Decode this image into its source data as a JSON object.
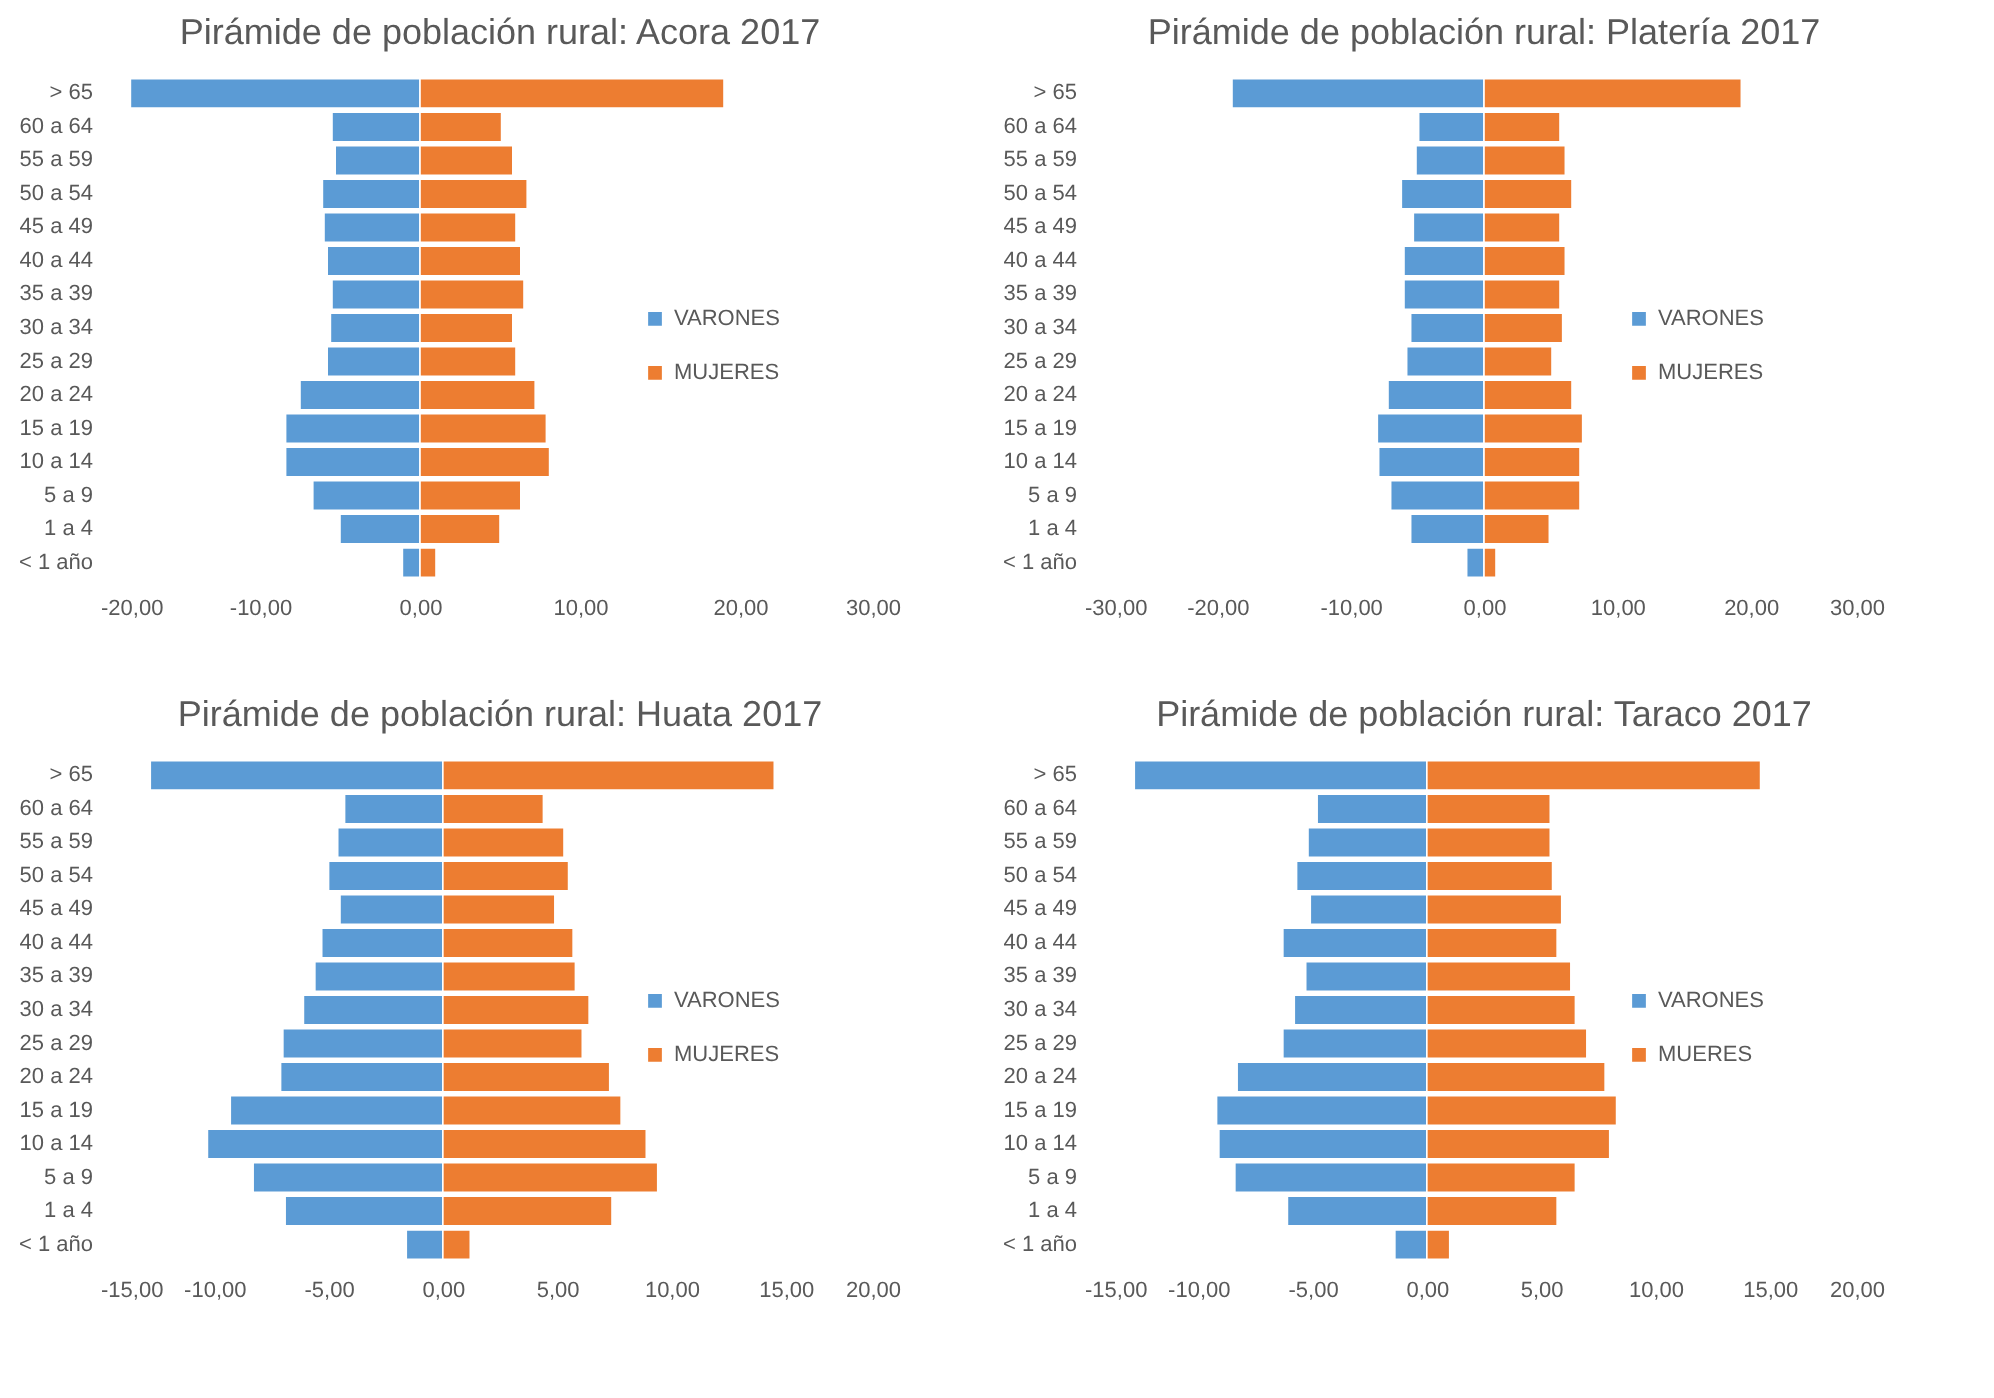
{
  "chart_data": [
    {
      "type": "bar",
      "orientation": "horizontal",
      "stacked": true,
      "title": "Pirámide de población rural: Acora 2017",
      "categories": [
        "> 65",
        "60 a 64",
        "55 a 59",
        "50 a 54",
        "45 a 49",
        "40 a 44",
        "35 a 39",
        "30 a 34",
        "25 a 29",
        "20 a 24",
        "15 a 19",
        "10 a 14",
        "5 a 9",
        "1 a 4",
        "< 1 año"
      ],
      "series": [
        {
          "name": "VARONES",
          "color": "#5b9bd5",
          "values": [
            -18.1,
            -5.5,
            -5.3,
            -6.1,
            -6.0,
            -5.8,
            -5.5,
            -5.6,
            -5.8,
            -7.5,
            -8.4,
            -8.4,
            -6.7,
            -5.0,
            -1.1
          ]
        },
        {
          "name": "MUJERES",
          "color": "#ed7d31",
          "values": [
            19.0,
            5.1,
            5.8,
            6.7,
            6.0,
            6.3,
            6.5,
            5.8,
            6.0,
            7.2,
            7.9,
            8.1,
            6.3,
            5.0,
            1.0
          ]
        }
      ],
      "xlim": [
        -20,
        30
      ],
      "xticks": [
        {
          "value": -20,
          "label": "-20,00"
        },
        {
          "value": -10,
          "label": "-10,00"
        },
        {
          "value": 0,
          "label": "0,00"
        },
        {
          "value": 10,
          "label": "10,00"
        },
        {
          "value": 20,
          "label": "20,00"
        },
        {
          "value": 30,
          "label": "30,00"
        }
      ],
      "legend": "right"
    },
    {
      "type": "bar",
      "orientation": "horizontal",
      "stacked": true,
      "title": "Pirámide de población rural: Platería 2017",
      "categories": [
        "> 65",
        "60 a 64",
        "55 a 59",
        "50 a 54",
        "45 a 49",
        "40 a 44",
        "35 a 39",
        "30 a 34",
        "25 a 29",
        "20 a 24",
        "15 a 19",
        "10 a 14",
        "5 a 9",
        "1 a 4",
        "< 1 año"
      ],
      "series": [
        {
          "name": "VARONES",
          "color": "#5b9bd5",
          "values": [
            -18.9,
            -4.9,
            -5.1,
            -6.2,
            -5.3,
            -6.0,
            -6.0,
            -5.5,
            -5.8,
            -7.2,
            -8.0,
            -7.9,
            -7.0,
            -5.5,
            -1.3
          ]
        },
        {
          "name": "MUJERES",
          "color": "#ed7d31",
          "values": [
            19.3,
            5.7,
            6.1,
            6.6,
            5.7,
            6.1,
            5.7,
            5.9,
            5.1,
            6.6,
            7.4,
            7.2,
            7.2,
            4.9,
            0.9
          ]
        }
      ],
      "xlim": [
        -30,
        30
      ],
      "xticks": [
        {
          "value": -30,
          "label": "-30,00"
        },
        {
          "value": -20,
          "label": "-20,00"
        },
        {
          "value": -10,
          "label": "-10,00"
        },
        {
          "value": 0,
          "label": "0,00"
        },
        {
          "value": 10,
          "label": "10,00"
        },
        {
          "value": 20,
          "label": "20,00"
        },
        {
          "value": 30,
          "label": "30,00"
        }
      ],
      "legend": "right"
    },
    {
      "type": "bar",
      "orientation": "horizontal",
      "stacked": true,
      "title": "Pirámide de población rural: Huata 2017",
      "categories": [
        "> 65",
        "60 a 64",
        "55 a 59",
        "50 a 54",
        "45 a 49",
        "40 a 44",
        "35 a 39",
        "30 a 34",
        "25 a 29",
        "20 a 24",
        "15 a 19",
        "10 a 14",
        "5 a 9",
        "1 a 4",
        "< 1 año"
      ],
      "series": [
        {
          "name": "VARONES",
          "color": "#5b9bd5",
          "values": [
            -12.8,
            -4.3,
            -4.6,
            -5.0,
            -4.5,
            -5.3,
            -5.6,
            -6.1,
            -7.0,
            -7.1,
            -9.3,
            -10.3,
            -8.3,
            -6.9,
            -1.6
          ]
        },
        {
          "name": "MUJERES",
          "color": "#ed7d31",
          "values": [
            14.5,
            4.4,
            5.3,
            5.5,
            4.9,
            5.7,
            5.8,
            6.4,
            6.1,
            7.3,
            7.8,
            8.9,
            9.4,
            7.4,
            1.2
          ]
        }
      ],
      "xlim": [
        -15,
        20
      ],
      "xticks": [
        {
          "value": -15,
          "label": "-15,00"
        },
        {
          "value": -10,
          "label": "-10,00"
        },
        {
          "value": -5,
          "label": "-5,00"
        },
        {
          "value": 0,
          "label": "0,00"
        },
        {
          "value": 5,
          "label": "5,00"
        },
        {
          "value": 10,
          "label": "10,00"
        },
        {
          "value": 15,
          "label": "15,00"
        },
        {
          "value": 20,
          "label": "20,00"
        }
      ],
      "legend": "right"
    },
    {
      "type": "bar",
      "orientation": "horizontal",
      "stacked": true,
      "title": "Pirámide de población rural: Taraco 2017",
      "categories": [
        "> 65",
        "60 a 64",
        "55 a 59",
        "50 a 54",
        "45 a 49",
        "40 a 44",
        "35 a 39",
        "30 a 34",
        "25 a 29",
        "20 a 24",
        "15 a 19",
        "10 a 14",
        "5 a 9",
        "1 a 4",
        "< 1 año"
      ],
      "series": [
        {
          "name": "VARONES",
          "color": "#5b9bd5",
          "values": [
            -12.8,
            -4.8,
            -5.2,
            -5.7,
            -5.1,
            -6.3,
            -5.3,
            -5.8,
            -6.3,
            -8.3,
            -9.2,
            -9.1,
            -8.4,
            -6.1,
            -1.4
          ]
        },
        {
          "name": "MUERES",
          "color": "#ed7d31",
          "values": [
            14.6,
            5.4,
            5.4,
            5.5,
            5.9,
            5.7,
            6.3,
            6.5,
            7.0,
            7.8,
            8.3,
            8.0,
            6.5,
            5.7,
            1.0
          ]
        }
      ],
      "xlim": [
        -15,
        20
      ],
      "xticks": [
        {
          "value": -15,
          "label": "-15,00"
        },
        {
          "value": -10,
          "label": "-10,00"
        },
        {
          "value": -5,
          "label": "-5,00"
        },
        {
          "value": 0,
          "label": "0,00"
        },
        {
          "value": 5,
          "label": "5,00"
        },
        {
          "value": 10,
          "label": "10,00"
        },
        {
          "value": 15,
          "label": "15,00"
        },
        {
          "value": 20,
          "label": "20,00"
        }
      ],
      "legend": "right"
    }
  ]
}
